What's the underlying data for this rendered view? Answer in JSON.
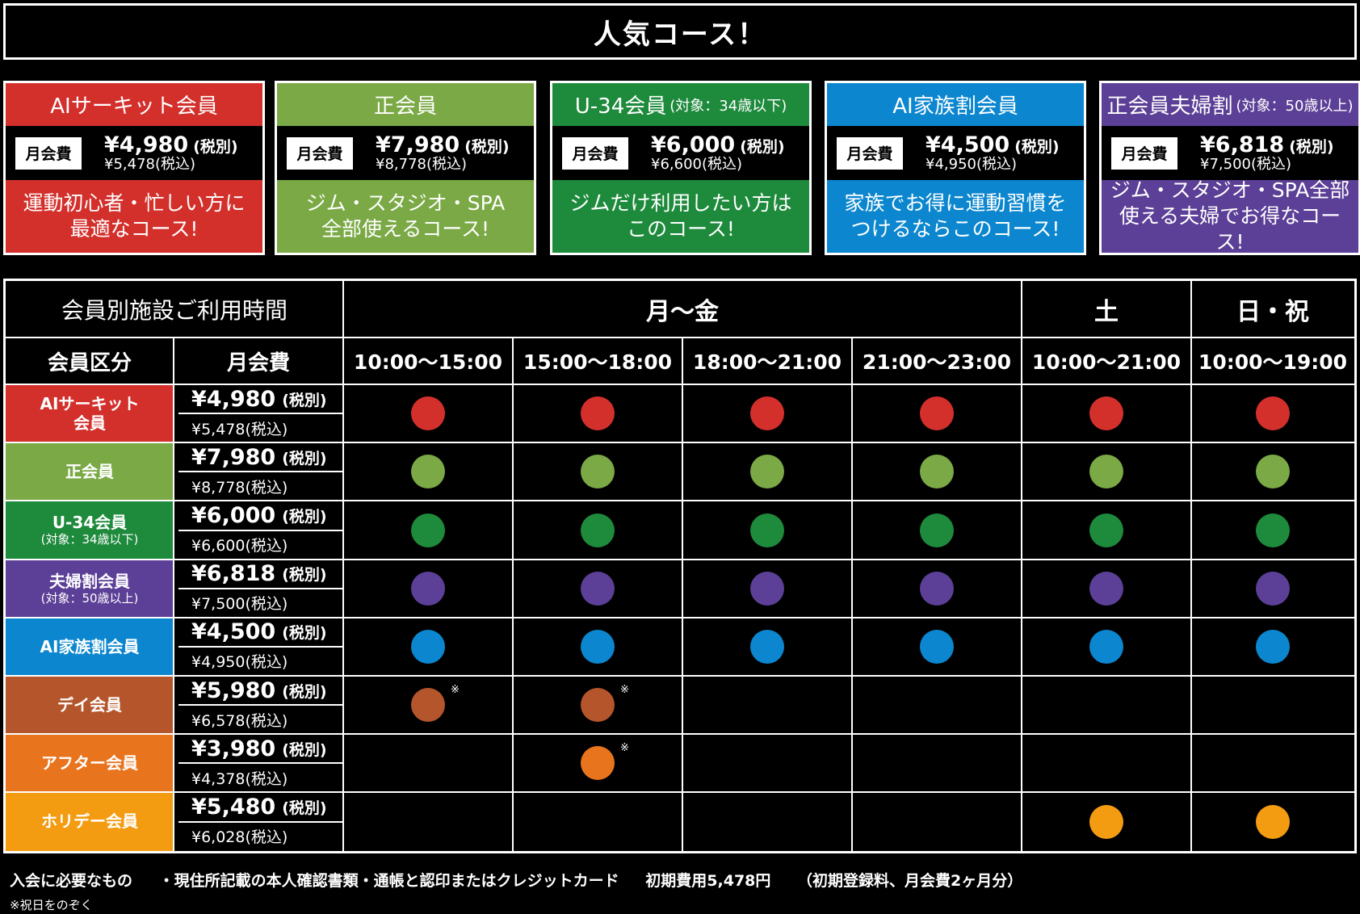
{
  "title": "人気コース！",
  "cards": [
    {
      "name": "AIサーキット会員",
      "sub": "",
      "badge": "月会費",
      "price": "¥4,980",
      "tax_ex": "(税別)",
      "price_in": "¥5,478(税込)",
      "desc1": "運動初心者・忙しい方に",
      "desc2": "最適なコース!",
      "color": "#d3302c"
    },
    {
      "name": "正会員",
      "sub": "",
      "badge": "月会費",
      "price": "¥7,980",
      "tax_ex": "(税別)",
      "price_in": "¥8,778(税込)",
      "desc1": "ジム・スタジオ・SPA",
      "desc2": "全部使えるコース!",
      "color": "#7aa945"
    },
    {
      "name": "U-34会員",
      "sub": "(対象：34歳以下)",
      "badge": "月会費",
      "price": "¥6,000",
      "tax_ex": "(税別)",
      "price_in": "¥6,600(税込)",
      "desc1": "ジムだけ利用したい方は",
      "desc2": "このコース!",
      "color": "#1e8a3c"
    },
    {
      "name": "AI家族割会員",
      "sub": "",
      "badge": "月会費",
      "price": "¥4,500",
      "tax_ex": "(税別)",
      "price_in": "¥4,950(税込)",
      "desc1": "家族でお得に運動習慣を",
      "desc2": "つけるならこのコース!",
      "color": "#0b86cf"
    },
    {
      "name": "正会員夫婦割",
      "sub": "(対象：50歳以上)",
      "badge": "月会費",
      "price": "¥6,818",
      "tax_ex": "(税別)",
      "price_in": "¥7,500(税込)",
      "desc1": "ジム・スタジオ・SPA全部",
      "desc2": "使える夫婦でお得なコース!",
      "color": "#5c3f96"
    }
  ],
  "schedule": {
    "title": "会員別施設ご利用時間",
    "group_weekday": "月〜金",
    "group_sat": "土",
    "group_sun": "日・祝",
    "col_member": "会員区分",
    "col_fee": "月会費",
    "times": [
      "10:00〜15:00",
      "15:00〜18:00",
      "18:00〜21:00",
      "21:00〜23:00",
      "10:00〜21:00",
      "10:00〜19:00"
    ],
    "note_mark": "※",
    "rows": [
      {
        "name": "AIサーキット",
        "name2": "会員",
        "sub": "",
        "price": "¥4,980",
        "tax_ex": "(税別)",
        "price_in": "¥5,478(税込)",
        "color": "#d3302c",
        "dots": [
          1,
          1,
          1,
          1,
          1,
          1
        ],
        "notes": [
          0,
          0,
          0,
          0,
          0,
          0
        ]
      },
      {
        "name": "正会員",
        "name2": "",
        "sub": "",
        "price": "¥7,980",
        "tax_ex": "(税別)",
        "price_in": "¥8,778(税込)",
        "color": "#7aa945",
        "dots": [
          1,
          1,
          1,
          1,
          1,
          1
        ],
        "notes": [
          0,
          0,
          0,
          0,
          0,
          0
        ]
      },
      {
        "name": "U-34会員",
        "name2": "",
        "sub": "(対象：34歳以下)",
        "price": "¥6,000",
        "tax_ex": "(税別)",
        "price_in": "¥6,600(税込)",
        "color": "#1e8a3c",
        "dots": [
          1,
          1,
          1,
          1,
          1,
          1
        ],
        "notes": [
          0,
          0,
          0,
          0,
          0,
          0
        ]
      },
      {
        "name": "夫婦割会員",
        "name2": "",
        "sub": "(対象：50歳以上)",
        "price": "¥6,818",
        "tax_ex": "(税別)",
        "price_in": "¥7,500(税込)",
        "color": "#5c3f96",
        "dots": [
          1,
          1,
          1,
          1,
          1,
          1
        ],
        "notes": [
          0,
          0,
          0,
          0,
          0,
          0
        ]
      },
      {
        "name": "AI家族割会員",
        "name2": "",
        "sub": "",
        "price": "¥4,500",
        "tax_ex": "(税別)",
        "price_in": "¥4,950(税込)",
        "color": "#0b86cf",
        "dots": [
          1,
          1,
          1,
          1,
          1,
          1
        ],
        "notes": [
          0,
          0,
          0,
          0,
          0,
          0
        ]
      },
      {
        "name": "デイ会員",
        "name2": "",
        "sub": "",
        "price": "¥5,980",
        "tax_ex": "(税別)",
        "price_in": "¥6,578(税込)",
        "color": "#b5552b",
        "dots": [
          1,
          1,
          0,
          0,
          0,
          0
        ],
        "notes": [
          1,
          1,
          0,
          0,
          0,
          0
        ]
      },
      {
        "name": "アフター会員",
        "name2": "",
        "sub": "",
        "price": "¥3,980",
        "tax_ex": "(税別)",
        "price_in": "¥4,378(税込)",
        "color": "#e9741e",
        "dots": [
          0,
          1,
          0,
          0,
          0,
          0
        ],
        "notes": [
          0,
          1,
          0,
          0,
          0,
          0
        ]
      },
      {
        "name": "ホリデー会員",
        "name2": "",
        "sub": "",
        "price": "¥5,480",
        "tax_ex": "(税別)",
        "price_in": "¥6,028(税込)",
        "color": "#f39c12",
        "dots": [
          0,
          0,
          0,
          0,
          1,
          1
        ],
        "notes": [
          0,
          0,
          0,
          0,
          0,
          0
        ]
      }
    ]
  },
  "footer": {
    "req_label": "入会に必要なもの",
    "req_items": "・現住所記載の本人確認書類・通帳と認印またはクレジットカード",
    "initial_cost": "初期費用5,478円",
    "initial_detail": "（初期登録料、月会費2ヶ月分）",
    "note": "※祝日をのぞく"
  }
}
